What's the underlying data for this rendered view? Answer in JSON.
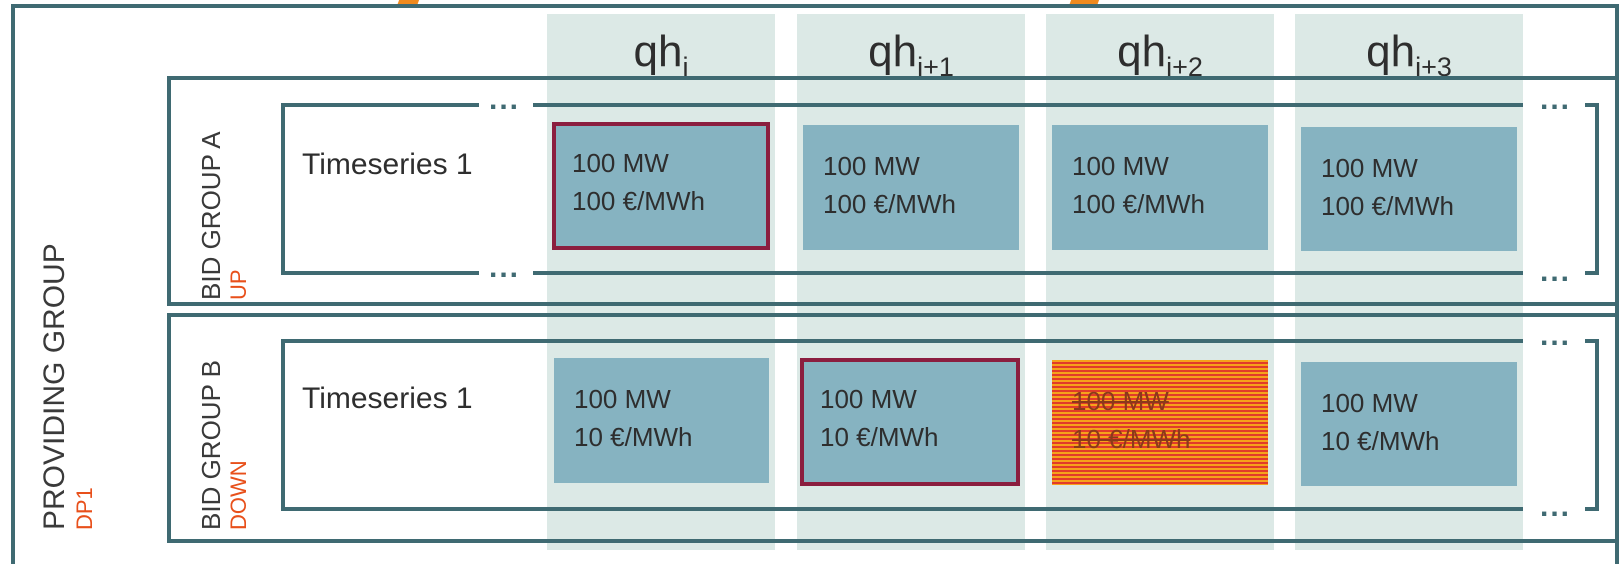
{
  "providing_group": {
    "label": "PROVIDING GROUP",
    "sub": "DP1"
  },
  "columns": [
    {
      "base": "qh",
      "sub": "i"
    },
    {
      "base": "qh",
      "sub": "i+1"
    },
    {
      "base": "qh",
      "sub": "i+2"
    },
    {
      "base": "qh",
      "sub": "i+3"
    }
  ],
  "bid_groups": [
    {
      "label": "BID GROUP A",
      "direction": "UP",
      "timeseries_label": "Timeseries 1",
      "cells": [
        {
          "power": "100 MW",
          "price": "100 €/MWh",
          "state": "selected"
        },
        {
          "power": "100 MW",
          "price": "100 €/MWh",
          "state": "normal"
        },
        {
          "power": "100 MW",
          "price": "100 €/MWh",
          "state": "normal"
        },
        {
          "power": "100 MW",
          "price": "100 €/MWh",
          "state": "normal"
        }
      ]
    },
    {
      "label": "BID GROUP B",
      "direction": "DOWN",
      "timeseries_label": "Timeseries 1",
      "cells": [
        {
          "power": "100 MW",
          "price": "10 €/MWh",
          "state": "normal"
        },
        {
          "power": "100 MW",
          "price": "10 €/MWh",
          "state": "selected"
        },
        {
          "power": "100 MW",
          "price": "10 €/MWh",
          "state": "struck"
        },
        {
          "power": "100 MW",
          "price": "10 €/MWh",
          "state": "normal"
        }
      ]
    }
  ],
  "ellipsis": "...",
  "colors": {
    "frame": "#3f6a72",
    "column_band": "#dce9e6",
    "cell": "#86b3c1",
    "selected_border": "#8b1e3f",
    "accent": "#e8501b"
  }
}
